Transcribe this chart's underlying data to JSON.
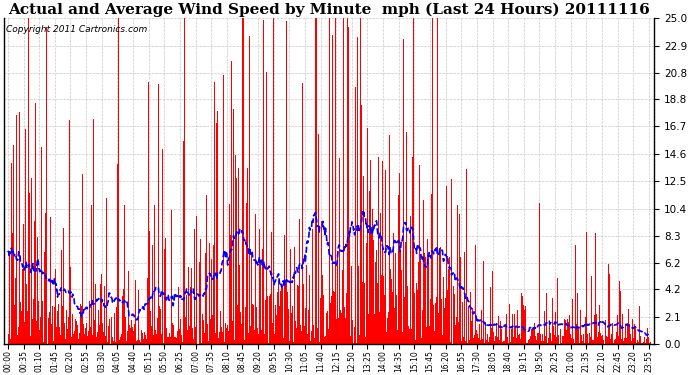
{
  "title": "Actual and Average Wind Speed by Minute  mph (Last 24 Hours) 20111116",
  "copyright": "Copyright 2011 Cartronics.com",
  "yticks": [
    0.0,
    2.1,
    4.2,
    6.2,
    8.3,
    10.4,
    12.5,
    14.6,
    16.7,
    18.8,
    20.8,
    22.9,
    25.0
  ],
  "ymax": 25.0,
  "ymin": 0.0,
  "bar_color": "#ff0000",
  "line_color": "#0000ff",
  "background_color": "#ffffff",
  "grid_color": "#bbbbbb",
  "title_fontsize": 11,
  "copyright_fontsize": 6.5,
  "xtick_fontsize": 5.5,
  "ytick_fontsize": 7.5,
  "figwidth": 6.9,
  "figheight": 3.75,
  "dpi": 100
}
